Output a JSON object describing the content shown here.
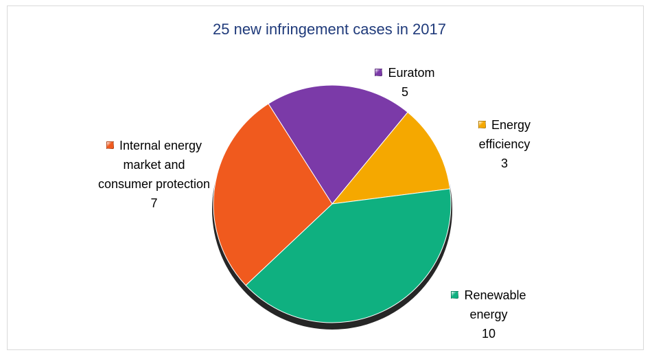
{
  "chart_data": {
    "type": "pie",
    "title": "25 new infringement cases in 2017",
    "categories": [
      "Euratom",
      "Energy efficiency",
      "Renewable energy",
      "Internal energy market and consumer protection"
    ],
    "values": [
      5,
      3,
      10,
      7
    ],
    "colors": [
      "#7b3aa8",
      "#f5a800",
      "#0fb080",
      "#f05a1e"
    ]
  }
}
